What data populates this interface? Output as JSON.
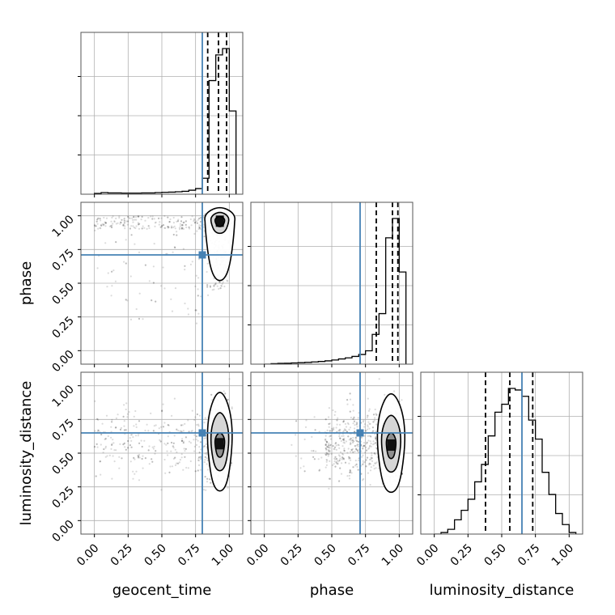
{
  "chart_data": {
    "type": "corner",
    "parameters": [
      "geocent_time",
      "phase",
      "luminosity_distance"
    ],
    "ticks": [
      "0.00",
      "0.25",
      "0.50",
      "0.75",
      "1.00"
    ],
    "tick_values": [
      0.0,
      0.25,
      0.5,
      0.75,
      1.0
    ],
    "axis_range": [
      -0.1,
      1.1
    ],
    "grid": true,
    "truths": {
      "geocent_time": 0.8,
      "phase": 0.71,
      "luminosity_distance": 0.65
    },
    "quantiles": {
      "geocent_time": [
        0.84,
        0.92,
        0.98
      ],
      "phase": [
        0.83,
        0.95,
        0.99
      ],
      "luminosity_distance": [
        0.38,
        0.56,
        0.73
      ]
    },
    "histograms": {
      "geocent_time": {
        "bin_edges": [
          0.0,
          0.05,
          0.1,
          0.15,
          0.2,
          0.25,
          0.3,
          0.35,
          0.4,
          0.45,
          0.5,
          0.55,
          0.6,
          0.65,
          0.7,
          0.75,
          0.8,
          0.85,
          0.9,
          0.95,
          1.0,
          1.05
        ],
        "counts": [
          0.005,
          0.01,
          0.008,
          0.008,
          0.007,
          0.007,
          0.007,
          0.008,
          0.008,
          0.01,
          0.012,
          0.013,
          0.015,
          0.018,
          0.025,
          0.035,
          0.1,
          0.71,
          0.87,
          0.91,
          0.52
        ]
      },
      "phase": {
        "bin_edges": [
          0.0,
          0.05,
          0.1,
          0.15,
          0.2,
          0.25,
          0.3,
          0.35,
          0.4,
          0.45,
          0.5,
          0.55,
          0.6,
          0.65,
          0.7,
          0.75,
          0.8,
          0.85,
          0.9,
          0.95,
          1.0,
          1.05
        ],
        "counts": [
          0.0,
          0.003,
          0.005,
          0.006,
          0.008,
          0.01,
          0.012,
          0.015,
          0.018,
          0.022,
          0.028,
          0.035,
          0.042,
          0.052,
          0.065,
          0.09,
          0.2,
          0.34,
          0.85,
          0.98,
          0.62
        ]
      },
      "luminosity_distance": {
        "bin_edges": [
          0.0,
          0.05,
          0.1,
          0.15,
          0.2,
          0.25,
          0.3,
          0.35,
          0.4,
          0.45,
          0.5,
          0.55,
          0.6,
          0.65,
          0.7,
          0.75,
          0.8,
          0.85,
          0.9,
          0.95,
          1.0,
          1.05
        ],
        "counts": [
          0.0,
          0.01,
          0.03,
          0.09,
          0.15,
          0.22,
          0.33,
          0.44,
          0.62,
          0.77,
          0.82,
          0.92,
          0.91,
          0.87,
          0.72,
          0.6,
          0.39,
          0.25,
          0.13,
          0.06,
          0.01
        ]
      }
    },
    "contours": {
      "geocent_time|phase": {
        "peak": [
          0.93,
          0.96
        ],
        "levels": [
          {
            "rx": 0.11,
            "ry_top": 0.1,
            "ry_bottom": 0.44
          },
          {
            "rx": 0.065,
            "ry_top": 0.065,
            "ry_bottom": 0.09
          },
          {
            "rx": 0.035,
            "ry_top": 0.035,
            "ry_bottom": 0.04
          }
        ]
      },
      "geocent_time|luminosity_distance": {
        "peak": [
          0.93,
          0.57
        ],
        "levels": [
          {
            "rx": 0.09,
            "ry_top": 0.38,
            "ry_bottom": 0.35
          },
          {
            "rx": 0.065,
            "ry_top": 0.23,
            "ry_bottom": 0.2
          },
          {
            "rx": 0.035,
            "ry_top": 0.08,
            "ry_bottom": 0.1
          }
        ]
      },
      "phase|luminosity_distance": {
        "peak": [
          0.94,
          0.56
        ],
        "levels": [
          {
            "rx": 0.1,
            "ry_top": 0.38,
            "ry_bottom": 0.35
          },
          {
            "rx": 0.07,
            "ry_top": 0.22,
            "ry_bottom": 0.2
          },
          {
            "rx": 0.035,
            "ry_top": 0.09,
            "ry_bottom": 0.1
          }
        ]
      }
    },
    "colors": {
      "truth": "#4682b4",
      "line": "#000000",
      "points": "#000000",
      "grid": "#b0b0b0"
    }
  }
}
